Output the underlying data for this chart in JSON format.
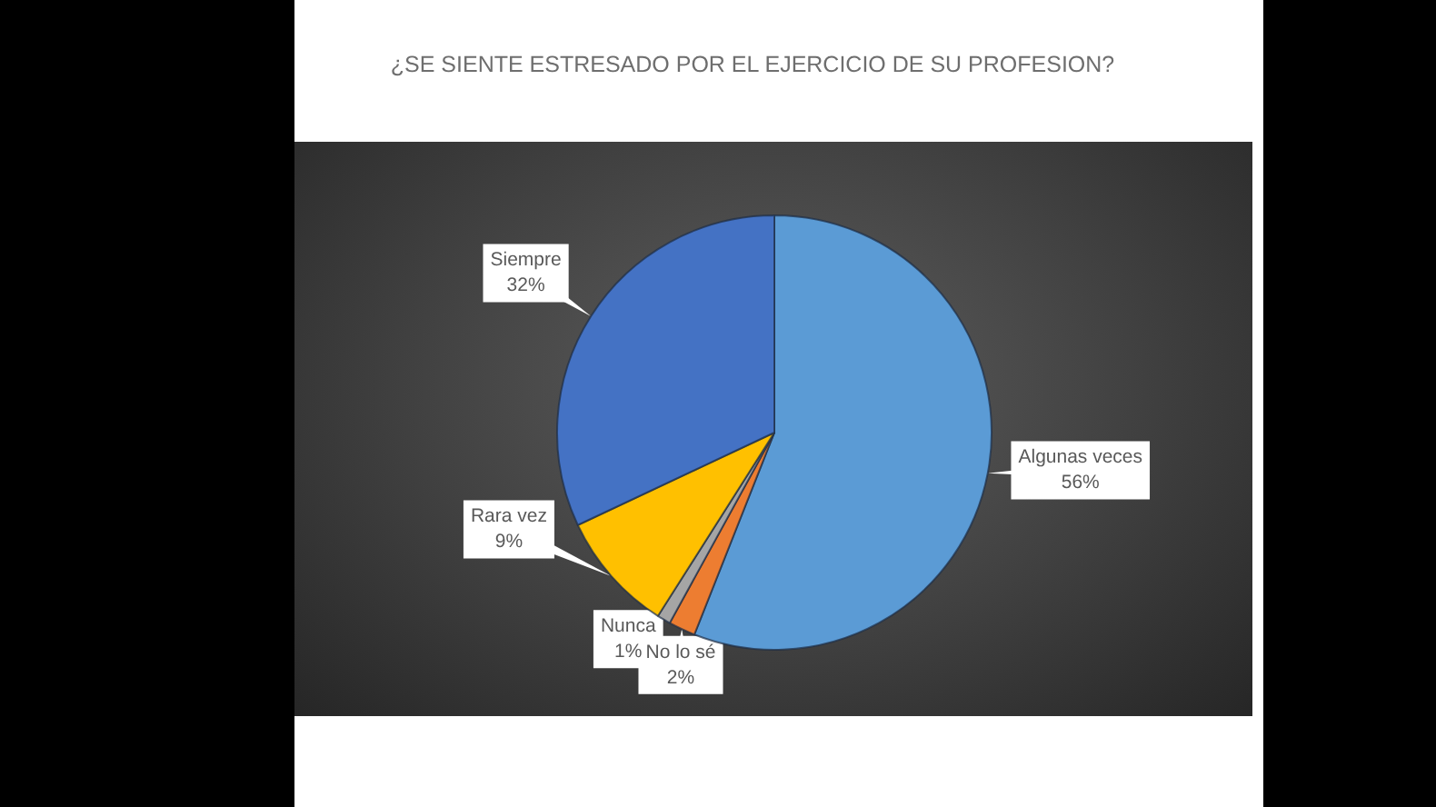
{
  "chart_data": {
    "type": "pie",
    "title": "¿SE SIENTE ESTRESADO POR EL EJERCICIO DE SU PROFESION?",
    "categories": [
      "Algunas veces",
      "No lo sé",
      "Nunca",
      "Rara vez",
      "Siempre"
    ],
    "values": [
      56,
      2,
      1,
      9,
      32
    ],
    "value_labels": [
      "56%",
      "2%",
      "1%",
      "9%",
      "32%"
    ],
    "colors": [
      "#5b9bd5",
      "#ed7d31",
      "#a5a5a5",
      "#ffc000",
      "#4472c4"
    ]
  }
}
